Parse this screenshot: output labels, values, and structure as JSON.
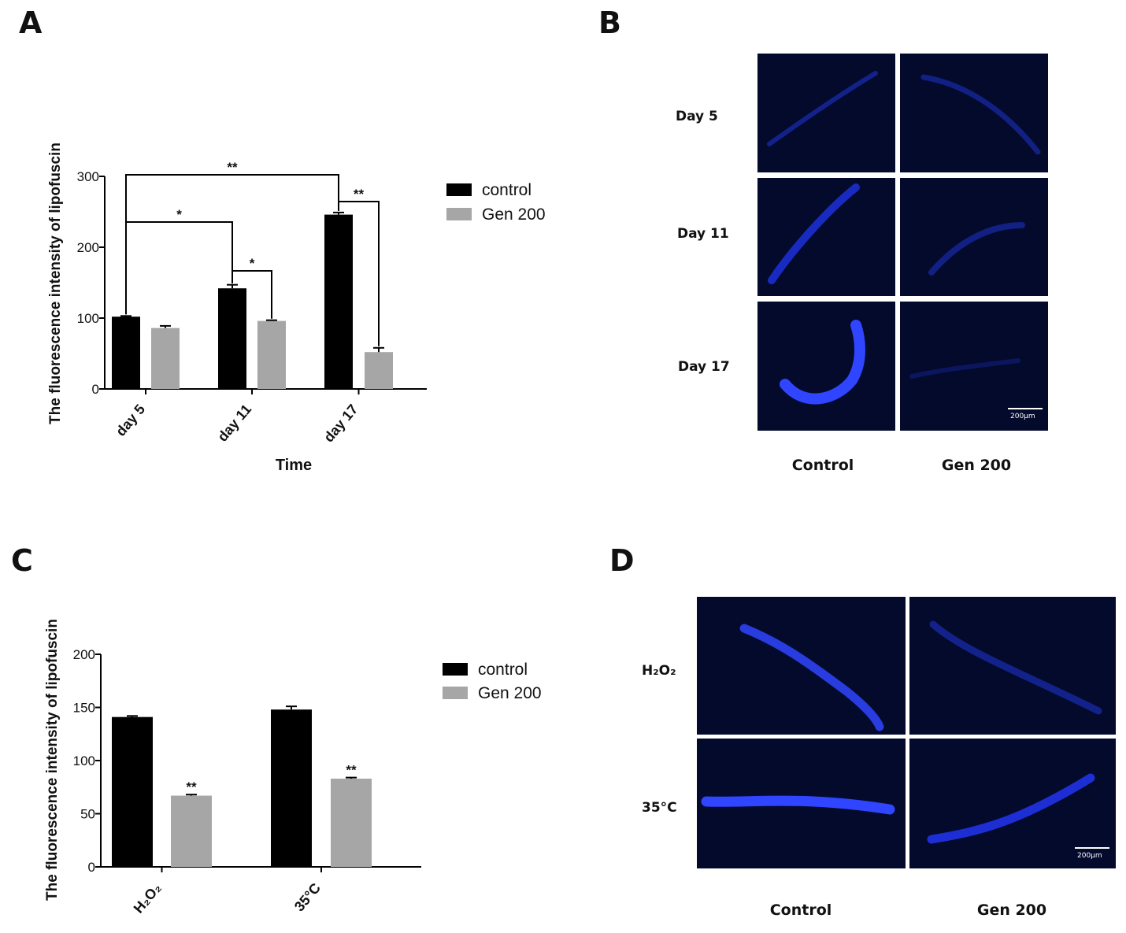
{
  "panels": {
    "A": {
      "letter": "A"
    },
    "B": {
      "letter": "B",
      "rows": [
        "Day 5",
        "Day 11",
        "Day 17"
      ],
      "columns": [
        "Control",
        "Gen 200"
      ],
      "scale_bar": "200μm"
    },
    "C": {
      "letter": "C"
    },
    "D": {
      "letter": "D",
      "rows": [
        "H₂O₂",
        "35°C"
      ],
      "columns": [
        "Control",
        "Gen 200"
      ],
      "scale_bar": "200μm"
    }
  },
  "colors": {
    "control": "#000000",
    "gen200": "#a6a6a6",
    "micro_bg": "#030a2c",
    "worm": "#2437ff"
  },
  "chart_data": [
    {
      "type": "bar",
      "panel": "A",
      "categories": [
        "day 5",
        "day 11",
        "day 17"
      ],
      "series": [
        {
          "name": "control",
          "values": [
            102,
            142,
            246
          ],
          "errors": [
            1,
            5,
            3
          ]
        },
        {
          "name": "Gen 200",
          "values": [
            86,
            96,
            52
          ],
          "errors": [
            3,
            1,
            6
          ]
        }
      ],
      "xlabel": "Time",
      "ylabel": "The fluorescence intensity of lipofuscin",
      "ylim": [
        0,
        300
      ],
      "yticks": [
        0,
        100,
        200,
        300
      ],
      "legend": "right",
      "annotations": [
        {
          "type": "bracket",
          "from": "control day 5",
          "to": "control day 17",
          "label": "**"
        },
        {
          "type": "bracket",
          "from": "control day 5",
          "to": "control day 11",
          "label": "*"
        },
        {
          "type": "bracket",
          "from": "control day 11",
          "to": "Gen 200 day 11",
          "label": "*"
        },
        {
          "type": "bracket",
          "from": "control day 17",
          "to": "Gen 200 day 17",
          "label": "**"
        }
      ]
    },
    {
      "type": "bar",
      "panel": "C",
      "categories": [
        "H₂O₂",
        "35°C"
      ],
      "series": [
        {
          "name": "control",
          "values": [
            141,
            148
          ],
          "errors": [
            1,
            3
          ]
        },
        {
          "name": "Gen 200",
          "values": [
            67,
            83
          ],
          "errors": [
            1,
            1
          ]
        }
      ],
      "xlabel": "",
      "ylabel": "The fluorescence intensity of lipofuscin",
      "ylim": [
        0,
        200
      ],
      "yticks": [
        0,
        50,
        100,
        150,
        200
      ],
      "legend": "right",
      "annotations": [
        {
          "type": "star",
          "series": "Gen 200",
          "category": "H₂O₂",
          "label": "**"
        },
        {
          "type": "star",
          "series": "Gen 200",
          "category": "35°C",
          "label": "**"
        }
      ]
    }
  ]
}
